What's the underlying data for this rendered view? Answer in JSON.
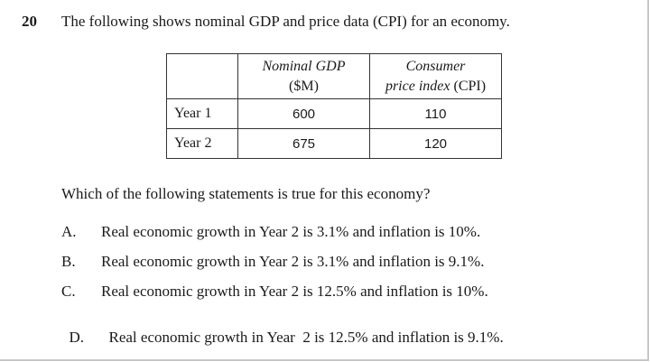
{
  "question": {
    "number": "20",
    "stem": "The following shows nominal GDP and price data (CPI) for an economy.",
    "prompt": "Which of the following statements is true for this economy?"
  },
  "table": {
    "headers": [
      {
        "line1": "Nominal GDP",
        "line2": "($M)"
      },
      {
        "line1": "Consumer",
        "line2_italic": "price index",
        "line2_rest": " (CPI)"
      }
    ],
    "rows": [
      {
        "label": "Year 1",
        "gdp": "600",
        "cpi": "110"
      },
      {
        "label": "Year 2",
        "gdp": "675",
        "cpi": "120"
      }
    ]
  },
  "options": [
    {
      "letter": "A.",
      "text": "Real economic growth in Year 2 is 3.1% and inflation is 10%."
    },
    {
      "letter": "B.",
      "text": "Real economic growth in Year 2 is 3.1% and inflation is 9.1%."
    },
    {
      "letter": "C.",
      "text": "Real economic growth in Year 2 is 12.5% and inflation is 10%."
    },
    {
      "letter": "D.",
      "text": "Real economic growth in Year  2 is 12.5% and inflation is 9.1%."
    }
  ]
}
